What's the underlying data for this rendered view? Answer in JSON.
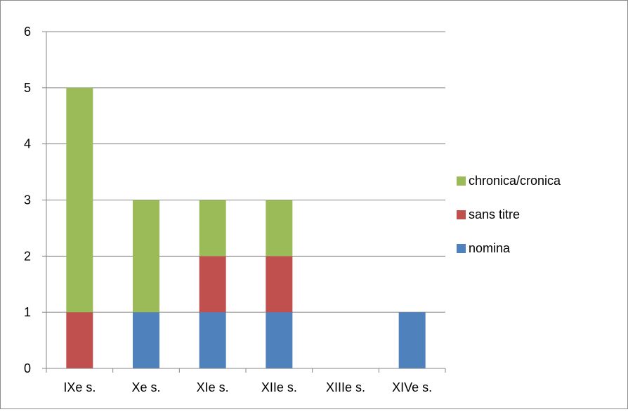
{
  "chart_data": {
    "type": "bar",
    "stacked": true,
    "categories": [
      "IXe s.",
      "Xe s.",
      "XIe s.",
      "XIIe s.",
      "XIIIe s.",
      "XIVe s."
    ],
    "series": [
      {
        "name": "nomina",
        "color": "#4f81bd",
        "values": [
          0,
          1,
          1,
          1,
          0,
          1
        ]
      },
      {
        "name": "sans titre",
        "color": "#c0504d",
        "values": [
          1,
          0,
          1,
          1,
          0,
          0
        ]
      },
      {
        "name": "chronica/cronica",
        "color": "#9bbb59",
        "values": [
          4,
          2,
          1,
          1,
          0,
          0
        ]
      }
    ],
    "ylim": [
      0,
      6
    ],
    "yticks": [
      "0",
      "1",
      "2",
      "3",
      "4",
      "5",
      "6"
    ],
    "grid": true,
    "legend_position": "right",
    "legend_order": [
      "chronica/cronica",
      "sans titre",
      "nomina"
    ],
    "title": "",
    "xlabel": "",
    "ylabel": ""
  }
}
